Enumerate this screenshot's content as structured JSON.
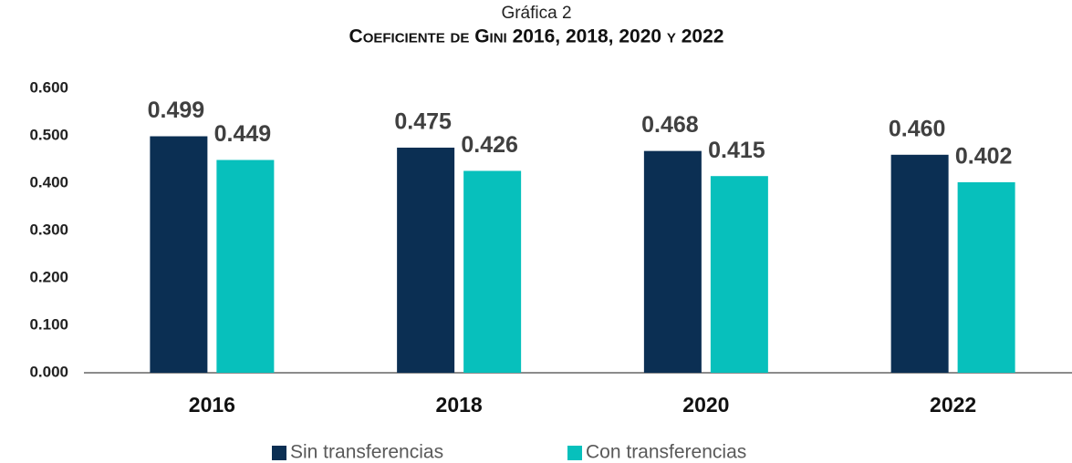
{
  "chart_data": {
    "type": "bar",
    "title": "Gráfica 2",
    "subtitle": "Coeficiente de Gini 2016, 2018, 2020 y 2022",
    "categories": [
      "2016",
      "2018",
      "2020",
      "2022"
    ],
    "series": [
      {
        "name": "Sin transferencias",
        "color": "#0b2f53",
        "values": [
          0.499,
          0.475,
          0.468,
          0.46
        ],
        "value_labels": [
          "0.499",
          "0.475",
          "0.468",
          "0.460"
        ]
      },
      {
        "name": "Con transferencias",
        "color": "#07c0bc",
        "values": [
          0.449,
          0.426,
          0.415,
          0.402
        ],
        "value_labels": [
          "0.449",
          "0.426",
          "0.415",
          "0.402"
        ]
      }
    ],
    "ylim": [
      0,
      0.6
    ],
    "yticks": [
      {
        "value": 0,
        "label": "0.000"
      },
      {
        "value": 0.1,
        "label": "0.100"
      },
      {
        "value": 0.2,
        "label": "0.200"
      },
      {
        "value": 0.3,
        "label": "0.300"
      },
      {
        "value": 0.4,
        "label": "0.400"
      },
      {
        "value": 0.5,
        "label": "0.500"
      },
      {
        "value": 0.6,
        "label": "0.600"
      }
    ],
    "grid": false,
    "legend": "bottom"
  }
}
